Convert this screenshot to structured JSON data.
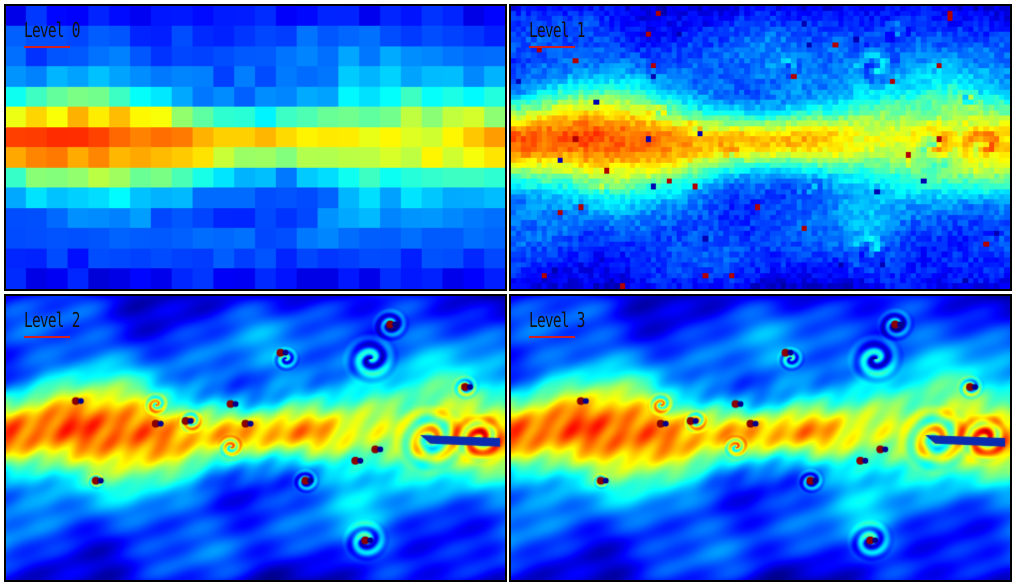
{
  "figure": {
    "panels": [
      {
        "label": "Level 0",
        "resolution_cells": [
          24,
          14
        ]
      },
      {
        "label": "Level 1",
        "resolution_cells": [
          96,
          54
        ]
      },
      {
        "label": "Level 2",
        "resolution_cells": null
      },
      {
        "label": "Level 3",
        "resolution_cells": null
      }
    ],
    "colormap": "jet",
    "label_underline_color": "#d42020",
    "border_color": "#000000"
  }
}
